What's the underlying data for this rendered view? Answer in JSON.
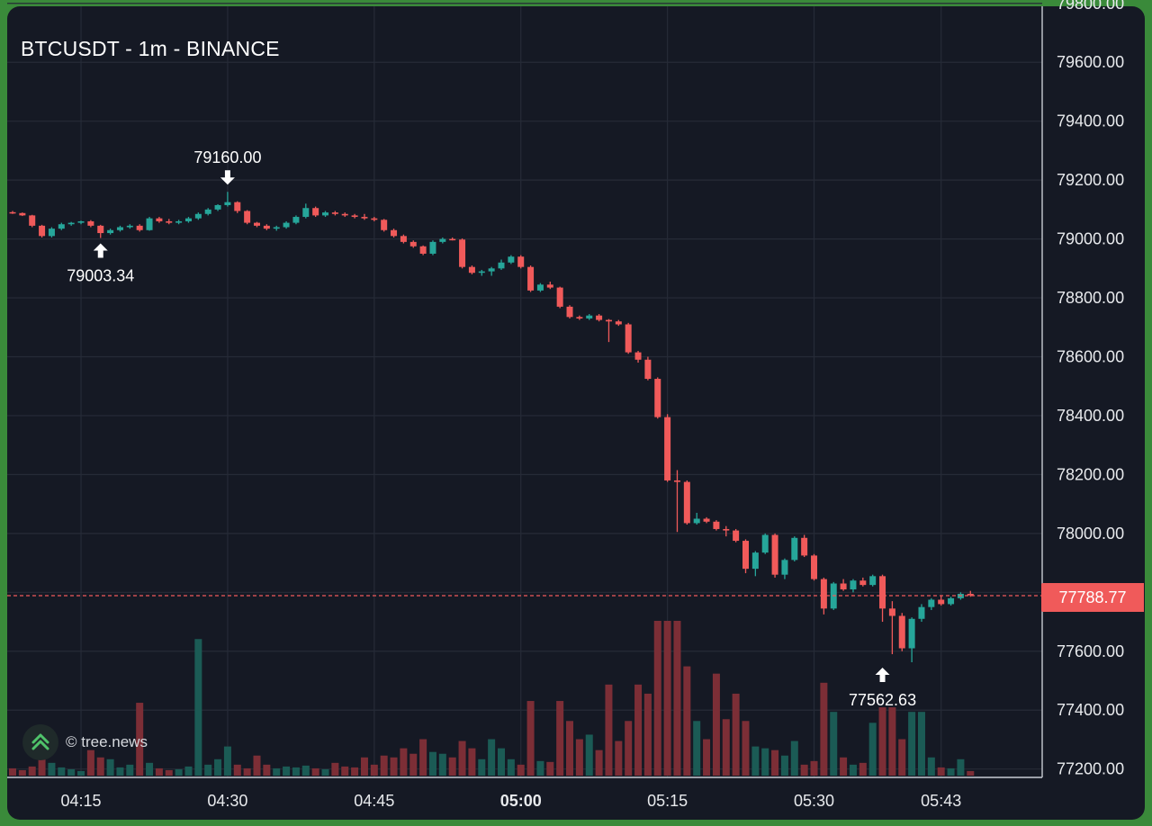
{
  "chart": {
    "title": "BTCUSDT - 1m - BINANCE",
    "watermark": "© tree.news",
    "current_price_label": "77788.77",
    "colors": {
      "up": "#26a69a",
      "down": "#f05a5a",
      "up_volume": "#1b5b55",
      "down_volume": "#7c2e36",
      "background": "#151924",
      "grid": "#262b37",
      "price_line": "#f05a5a",
      "text": "#ffffff"
    }
  },
  "chart_data": {
    "type": "candlestick",
    "interval": "1m",
    "y_axis": {
      "range": [
        77170,
        79810
      ],
      "ticks": [
        "79800.00",
        "79600.00",
        "79400.00",
        "79200.00",
        "79000.00",
        "78800.00",
        "78600.00",
        "78400.00",
        "78200.00",
        "78000.00",
        "77800.00",
        "77600.00",
        "77400.00",
        "77200.00"
      ]
    },
    "x_axis": {
      "ticks": [
        {
          "label": "04:15",
          "minute": 7,
          "bold": false
        },
        {
          "label": "04:30",
          "minute": 22,
          "bold": false
        },
        {
          "label": "04:45",
          "minute": 37,
          "bold": false
        },
        {
          "label": "05:00",
          "minute": 52,
          "bold": true
        },
        {
          "label": "05:15",
          "minute": 67,
          "bold": false
        },
        {
          "label": "05:30",
          "minute": 82,
          "bold": false
        },
        {
          "label": "05:43",
          "minute": 95,
          "bold": false
        }
      ]
    },
    "current_price": 77788.77,
    "annotations": [
      {
        "label": "79160.00",
        "minute": 22,
        "price": 79160.0,
        "kind": "high"
      },
      {
        "label": "79003.34",
        "minute": 9,
        "price": 79003.34,
        "kind": "low"
      },
      {
        "label": "77562.63",
        "minute": 89,
        "price": 77562.63,
        "kind": "low"
      }
    ],
    "candles": [
      [
        79091,
        79095,
        79085,
        79088,
        8
      ],
      [
        79088,
        79090,
        79078,
        79080,
        6
      ],
      [
        79080,
        79082,
        79040,
        79045,
        10
      ],
      [
        79045,
        79048,
        79005,
        79010,
        42
      ],
      [
        79010,
        79040,
        79005,
        79035,
        14
      ],
      [
        79035,
        79055,
        79030,
        79050,
        9
      ],
      [
        79050,
        79058,
        79045,
        79055,
        7
      ],
      [
        79055,
        79062,
        79050,
        79060,
        5
      ],
      [
        79060,
        79064,
        79040,
        79045,
        28
      ],
      [
        79045,
        79048,
        79003.34,
        79020,
        20
      ],
      [
        79020,
        79035,
        79015,
        79030,
        18
      ],
      [
        79030,
        79045,
        79025,
        79040,
        9
      ],
      [
        79040,
        79050,
        79035,
        79045,
        12
      ],
      [
        79045,
        79050,
        79025,
        79030,
        80
      ],
      [
        79030,
        79075,
        79028,
        79070,
        14
      ],
      [
        79070,
        79075,
        79055,
        79060,
        8
      ],
      [
        79060,
        79068,
        79050,
        79055,
        6
      ],
      [
        79055,
        79065,
        79050,
        79060,
        7
      ],
      [
        79060,
        79075,
        79055,
        79070,
        10
      ],
      [
        79070,
        79090,
        79065,
        79085,
        150
      ],
      [
        79085,
        79105,
        79080,
        79100,
        12
      ],
      [
        79100,
        79118,
        79095,
        79115,
        18
      ],
      [
        79115,
        79160,
        79110,
        79125,
        32
      ],
      [
        79125,
        79128,
        79088,
        79095,
        12
      ],
      [
        79095,
        79098,
        79050,
        79055,
        8
      ],
      [
        79055,
        79058,
        79040,
        79045,
        22
      ],
      [
        79045,
        79050,
        79030,
        79035,
        12
      ],
      [
        79035,
        79045,
        79028,
        79040,
        8
      ],
      [
        79040,
        79060,
        79035,
        79055,
        10
      ],
      [
        79055,
        79080,
        79050,
        79075,
        9
      ],
      [
        79075,
        79120,
        79070,
        79105,
        11
      ],
      [
        79105,
        79110,
        79075,
        79080,
        8
      ],
      [
        79080,
        79095,
        79075,
        79090,
        7
      ],
      [
        79090,
        79095,
        79080,
        79085,
        14
      ],
      [
        79085,
        79090,
        79075,
        79080,
        10
      ],
      [
        79080,
        79085,
        79070,
        79075,
        9
      ],
      [
        79075,
        79085,
        79065,
        79070,
        20
      ],
      [
        79070,
        79075,
        79060,
        79065,
        12
      ],
      [
        79065,
        79068,
        79025,
        79030,
        22
      ],
      [
        79030,
        79035,
        79005,
        79010,
        20
      ],
      [
        79010,
        79015,
        78985,
        78990,
        30
      ],
      [
        78990,
        78995,
        78970,
        78975,
        24
      ],
      [
        78975,
        78978,
        78945,
        78950,
        40
      ],
      [
        78950,
        78995,
        78945,
        78990,
        26
      ],
      [
        78990,
        79005,
        78985,
        79000,
        24
      ],
      [
        79000,
        79005,
        78995,
        78998,
        20
      ],
      [
        78998,
        79002,
        78900,
        78905,
        38
      ],
      [
        78905,
        78910,
        78880,
        78885,
        30
      ],
      [
        78885,
        78895,
        78875,
        78890,
        18
      ],
      [
        78890,
        78905,
        78875,
        78900,
        40
      ],
      [
        78900,
        78930,
        78895,
        78920,
        30
      ],
      [
        78920,
        78945,
        78915,
        78940,
        18
      ],
      [
        78940,
        78945,
        78900,
        78905,
        12
      ],
      [
        78905,
        78910,
        78820,
        78825,
        82
      ],
      [
        78825,
        78850,
        78820,
        78845,
        16
      ],
      [
        78845,
        78855,
        78830,
        78835,
        15
      ],
      [
        78835,
        78838,
        78765,
        78770,
        82
      ],
      [
        78770,
        78775,
        78730,
        78735,
        60
      ],
      [
        78735,
        78740,
        78725,
        78730,
        40
      ],
      [
        78730,
        78745,
        78725,
        78740,
        45
      ],
      [
        78740,
        78745,
        78720,
        78725,
        28
      ],
      [
        78725,
        78728,
        78650,
        78720,
        100
      ],
      [
        78720,
        78725,
        78705,
        78710,
        38
      ],
      [
        78710,
        78715,
        78610,
        78615,
        60
      ],
      [
        78615,
        78620,
        78580,
        78590,
        100
      ],
      [
        78590,
        78600,
        78520,
        78525,
        90
      ],
      [
        78525,
        78530,
        78390,
        78395,
        170
      ],
      [
        78395,
        78405,
        78175,
        78180,
        170
      ],
      [
        78180,
        78215,
        78005,
        78175,
        170
      ],
      [
        78175,
        78180,
        78030,
        78035,
        120
      ],
      [
        78035,
        78070,
        78030,
        78050,
        60
      ],
      [
        78050,
        78055,
        78035,
        78040,
        40
      ],
      [
        78040,
        78045,
        78010,
        78015,
        112
      ],
      [
        78015,
        78025,
        77990,
        78010,
        62
      ],
      [
        78010,
        78015,
        77970,
        77975,
        90
      ],
      [
        77975,
        77980,
        77865,
        77880,
        60
      ],
      [
        77880,
        77940,
        77855,
        77935,
        32
      ],
      [
        77935,
        78000,
        77930,
        77995,
        30
      ],
      [
        77995,
        78000,
        77850,
        77860,
        28
      ],
      [
        77860,
        77915,
        77845,
        77910,
        22
      ],
      [
        77910,
        77990,
        77905,
        77985,
        38
      ],
      [
        77985,
        77995,
        77920,
        77925,
        12
      ],
      [
        77925,
        77930,
        77840,
        77845,
        16
      ],
      [
        77845,
        77850,
        77725,
        77745,
        102
      ],
      [
        77745,
        77835,
        77740,
        77830,
        70
      ],
      [
        77830,
        77845,
        77805,
        77810,
        20
      ],
      [
        77810,
        77845,
        77800,
        77840,
        12
      ],
      [
        77840,
        77850,
        77820,
        77825,
        14
      ],
      [
        77825,
        77860,
        77820,
        77855,
        58
      ],
      [
        77855,
        77860,
        77700,
        77745,
        75
      ],
      [
        77745,
        77770,
        77590,
        77720,
        75
      ],
      [
        77720,
        77730,
        77600,
        77610,
        40
      ],
      [
        77610,
        77715,
        77562.63,
        77710,
        70
      ],
      [
        77710,
        77760,
        77700,
        77750,
        70
      ],
      [
        77750,
        77780,
        77740,
        77775,
        20
      ],
      [
        77775,
        77790,
        77755,
        77760,
        9
      ],
      [
        77760,
        77785,
        77755,
        77780,
        8
      ],
      [
        77780,
        77800,
        77775,
        77795,
        18
      ],
      [
        77795,
        77805,
        77785,
        77790,
        5
      ]
    ],
    "volume_max": 170
  }
}
